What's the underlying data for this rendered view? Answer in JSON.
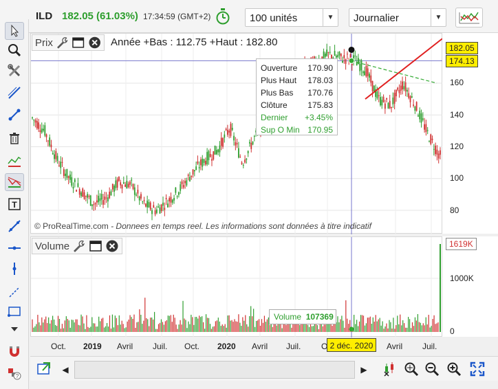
{
  "header": {
    "ticker": "ILD",
    "price_change": "182.05 (61.03%)",
    "time": "17:34:59",
    "timezone": "(GMT+2)",
    "units_select": "100 unités",
    "period_select": "Journalier"
  },
  "price_pane": {
    "label": "Prix",
    "annotation": "Année +Bas : 112.75 +Haut : 182.80",
    "y_ticks": [
      "160",
      "140",
      "120",
      "100",
      "80"
    ],
    "last_price_tag": "182.05",
    "crosshair_tag": "174.13",
    "copyright_prefix": "© ProRealTime.com",
    "copyright_text": " - Donnees en temps reel. Les informations sont données à titre indicatif"
  },
  "tooltip": {
    "rows": [
      {
        "label": "Ouverture",
        "value": "170.90"
      },
      {
        "label": "Plus Haut",
        "value": "178.03"
      },
      {
        "label": "Plus Bas",
        "value": "170.76"
      },
      {
        "label": "Clôture",
        "value": "175.83"
      },
      {
        "label": "Dernier",
        "value": "+3.45%"
      },
      {
        "label": "Sup O Min",
        "value": "170.95"
      }
    ]
  },
  "volume_pane": {
    "label": "Volume",
    "y_ticks": [
      "1000K",
      "0"
    ],
    "max_tag": "1619K",
    "cursor_label": "Volume",
    "cursor_value": "107369"
  },
  "x_axis": {
    "labels": [
      {
        "text": "Oct.",
        "bold": false
      },
      {
        "text": "2019",
        "bold": true
      },
      {
        "text": "Avril",
        "bold": false
      },
      {
        "text": "Juil.",
        "bold": false
      },
      {
        "text": "Oct.",
        "bold": false
      },
      {
        "text": "2020",
        "bold": true
      },
      {
        "text": "Avril",
        "bold": false
      },
      {
        "text": "Juil.",
        "bold": false
      },
      {
        "text": "O",
        "bold": false
      },
      {
        "text": "Avril",
        "bold": false
      },
      {
        "text": "Juil.",
        "bold": false
      }
    ],
    "cursor_date": "2 déc. 2020"
  },
  "colors": {
    "up": "#2e9e2e",
    "down": "#d03030",
    "trend_red": "#e02020",
    "trend_green": "#33aa33",
    "crosshair": "#7777cc",
    "date_highlight": "#ffee00"
  },
  "chart_data": {
    "type": "candlestick",
    "ylim": [
      70,
      190
    ],
    "x_range": [
      "2018-08",
      "2021-07"
    ],
    "approx_close_path": [
      {
        "date": "2018-08",
        "value": 138
      },
      {
        "date": "2018-10",
        "value": 130
      },
      {
        "date": "2018-12",
        "value": 112
      },
      {
        "date": "2019-01",
        "value": 100
      },
      {
        "date": "2019-02",
        "value": 92
      },
      {
        "date": "2019-03",
        "value": 84
      },
      {
        "date": "2019-04",
        "value": 88
      },
      {
        "date": "2019-05",
        "value": 98
      },
      {
        "date": "2019-06",
        "value": 96
      },
      {
        "date": "2019-07",
        "value": 84
      },
      {
        "date": "2019-08",
        "value": 80
      },
      {
        "date": "2019-09",
        "value": 86
      },
      {
        "date": "2019-10",
        "value": 94
      },
      {
        "date": "2019-11",
        "value": 104
      },
      {
        "date": "2019-12",
        "value": 112
      },
      {
        "date": "2020-01",
        "value": 118
      },
      {
        "date": "2020-02",
        "value": 132
      },
      {
        "date": "2020-03",
        "value": 110
      },
      {
        "date": "2020-04",
        "value": 126
      },
      {
        "date": "2020-05",
        "value": 140
      },
      {
        "date": "2020-06",
        "value": 150
      },
      {
        "date": "2020-07",
        "value": 162
      },
      {
        "date": "2020-08",
        "value": 170
      },
      {
        "date": "2020-09",
        "value": 174
      },
      {
        "date": "2020-10",
        "value": 178
      },
      {
        "date": "2020-11",
        "value": 176
      },
      {
        "date": "2020-12",
        "value": 175
      },
      {
        "date": "2021-01",
        "value": 168
      },
      {
        "date": "2021-02",
        "value": 150
      },
      {
        "date": "2021-03",
        "value": 146
      },
      {
        "date": "2021-04",
        "value": 160
      },
      {
        "date": "2021-05",
        "value": 146
      },
      {
        "date": "2021-06",
        "value": 128
      },
      {
        "date": "2021-07",
        "value": 114
      }
    ]
  }
}
